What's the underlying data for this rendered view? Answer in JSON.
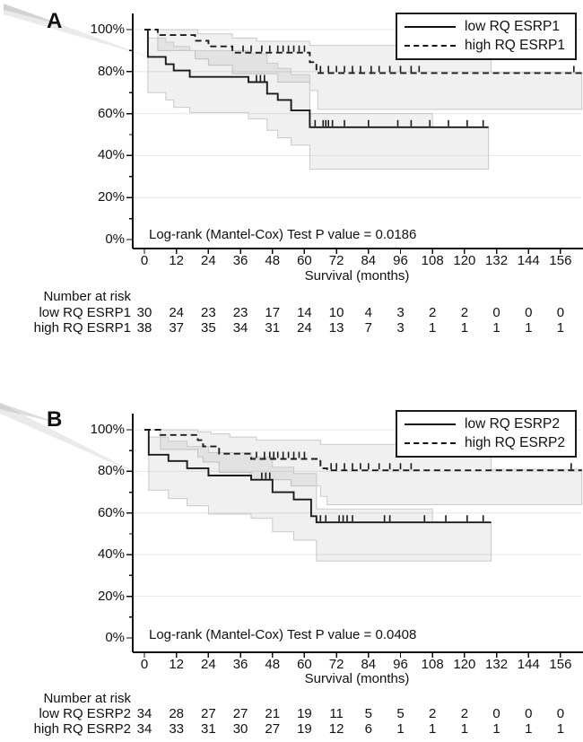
{
  "colors": {
    "curve": "#1a1a1a",
    "band_fill": "rgba(128,128,128,0.12)",
    "band_edge": "#c9c9c9",
    "grid_line": "#ebebeb",
    "axis": "#111111",
    "wedge": "#d9d9d9"
  },
  "chart_data": [
    {
      "type": "line",
      "subtype": "kaplan-meier-step",
      "panel_label": "A",
      "xlabel": "Survival (months)",
      "p_value_label": "Log-rank (Mantel-Cox) Test P value = 0.0186",
      "x_ticks": [
        0,
        12,
        24,
        36,
        48,
        60,
        72,
        84,
        96,
        108,
        120,
        132,
        144,
        156
      ],
      "y_ticks": [
        0,
        20,
        40,
        60,
        80,
        100
      ],
      "y_tick_suffix": "%",
      "xlim": [
        0,
        164
      ],
      "ylim": [
        0,
        100
      ],
      "grid": "horizontal",
      "legend_position": "top-right",
      "series": [
        {
          "name": "low RQ ESRP1",
          "line": "solid",
          "steps": [
            [
              0,
              100
            ],
            [
              1.3,
              87
            ],
            [
              8,
              83.5
            ],
            [
              11,
              80.5
            ],
            [
              17,
              77.5
            ],
            [
              39,
              75
            ],
            [
              46,
              69.5
            ],
            [
              50,
              66.5
            ],
            [
              55,
              61.5
            ],
            [
              62,
              53.5
            ],
            [
              129,
              53.5
            ]
          ],
          "censor_ticks": [
            [
              42,
              75
            ],
            [
              43.5,
              75
            ],
            [
              45,
              75
            ],
            [
              64,
              53.5
            ],
            [
              67,
              53.5
            ],
            [
              68,
              53.5
            ],
            [
              69,
              53.5
            ],
            [
              70.5,
              53.5
            ],
            [
              75,
              53.5
            ],
            [
              84,
              53.5
            ],
            [
              95,
              53.5
            ],
            [
              100,
              53.5
            ],
            [
              107,
              53.5
            ],
            [
              114,
              53.5
            ],
            [
              121,
              53.5
            ],
            [
              127,
              53.5
            ]
          ],
          "ci_upper": [
            [
              0,
              100
            ],
            [
              1.3,
              96
            ],
            [
              8,
              94
            ],
            [
              11,
              92
            ],
            [
              17,
              90
            ],
            [
              39,
              88.5
            ],
            [
              46,
              84
            ],
            [
              50,
              81.5
            ],
            [
              55,
              78.5
            ],
            [
              62,
              60
            ],
            [
              108,
              60
            ],
            [
              108,
              53.6
            ],
            [
              129,
              53.6
            ]
          ],
          "ci_lower": [
            [
              0,
              100
            ],
            [
              1.3,
              70
            ],
            [
              8,
              66.5
            ],
            [
              11,
              63
            ],
            [
              17,
              60.5
            ],
            [
              39,
              57.5
            ],
            [
              46,
              52
            ],
            [
              50,
              48.5
            ],
            [
              55,
              45
            ],
            [
              62,
              33.5
            ],
            [
              129,
              33.5
            ]
          ]
        },
        {
          "name": "high RQ ESRP1",
          "line": "dashed",
          "steps": [
            [
              0,
              100
            ],
            [
              5,
              97.4
            ],
            [
              19,
              94.7
            ],
            [
              24,
              92
            ],
            [
              33,
              89
            ],
            [
              62,
              84.5
            ],
            [
              64.5,
              79.3
            ],
            [
              164,
              79.3
            ]
          ],
          "censor_ticks": [
            [
              37,
              89
            ],
            [
              40,
              89
            ],
            [
              44,
              89
            ],
            [
              47,
              89
            ],
            [
              50,
              89
            ],
            [
              52,
              89
            ],
            [
              54,
              89
            ],
            [
              56,
              89
            ],
            [
              58,
              89
            ],
            [
              60,
              89
            ],
            [
              66,
              79.3
            ],
            [
              69,
              79.3
            ],
            [
              72,
              79.3
            ],
            [
              75,
              79.3
            ],
            [
              78,
              79.3
            ],
            [
              81,
              79.3
            ],
            [
              85,
              79.3
            ],
            [
              88,
              79.3
            ],
            [
              92,
              79.3
            ],
            [
              96,
              79.3
            ],
            [
              100,
              79.3
            ],
            [
              103,
              79.3
            ],
            [
              161,
              79.3
            ]
          ],
          "ci_upper": [
            [
              0,
              100
            ],
            [
              20,
              98
            ],
            [
              33,
              96
            ],
            [
              42,
              94.5
            ],
            [
              62,
              92.5
            ],
            [
              130,
              92.5
            ],
            [
              130,
              79.5
            ],
            [
              164,
              79.5
            ]
          ],
          "ci_lower": [
            [
              0,
              100
            ],
            [
              5,
              90
            ],
            [
              19,
              86
            ],
            [
              24,
              83
            ],
            [
              33,
              79
            ],
            [
              50,
              75
            ],
            [
              62,
              71
            ],
            [
              65,
              62
            ],
            [
              164,
              62
            ]
          ]
        }
      ],
      "risk_table": {
        "header": "Number at risk",
        "rows": [
          {
            "label": "low RQ ESRP1",
            "counts": [
              30,
              24,
              23,
              23,
              17,
              14,
              10,
              4,
              3,
              2,
              2,
              0,
              0,
              0
            ]
          },
          {
            "label": "high RQ ESRP1",
            "counts": [
              38,
              37,
              35,
              34,
              31,
              24,
              13,
              7,
              3,
              1,
              1,
              1,
              1,
              1
            ]
          }
        ]
      }
    },
    {
      "type": "line",
      "subtype": "kaplan-meier-step",
      "panel_label": "B",
      "xlabel": "Survival (months)",
      "p_value_label": "Log-rank (Mantel-Cox) Test P value = 0.0408",
      "x_ticks": [
        0,
        12,
        24,
        36,
        48,
        60,
        72,
        84,
        96,
        108,
        120,
        132,
        144,
        156
      ],
      "y_ticks": [
        0,
        20,
        40,
        60,
        80,
        100
      ],
      "y_tick_suffix": "%",
      "xlim": [
        0,
        164
      ],
      "ylim": [
        0,
        100
      ],
      "grid": "horizontal",
      "legend_position": "top-right",
      "series": [
        {
          "name": "low RQ ESRP2",
          "line": "solid",
          "steps": [
            [
              0,
              100
            ],
            [
              1.6,
              88
            ],
            [
              9,
              85
            ],
            [
              16,
              81.5
            ],
            [
              24,
              78
            ],
            [
              40,
              76
            ],
            [
              48,
              70
            ],
            [
              56,
              66.5
            ],
            [
              62.5,
              58.5
            ],
            [
              64.5,
              55.5
            ],
            [
              130,
              55.5
            ]
          ],
          "censor_ticks": [
            [
              44,
              76
            ],
            [
              45.5,
              76
            ],
            [
              47,
              76
            ],
            [
              66,
              55.5
            ],
            [
              68,
              55.5
            ],
            [
              73,
              55.5
            ],
            [
              74.5,
              55.5
            ],
            [
              76,
              55.5
            ],
            [
              78,
              55.5
            ],
            [
              90,
              55.5
            ],
            [
              92,
              55.5
            ],
            [
              105,
              55.5
            ],
            [
              113,
              55.5
            ],
            [
              121,
              55.5
            ],
            [
              127,
              55.5
            ]
          ],
          "ci_upper": [
            [
              0,
              100
            ],
            [
              1.6,
              96.5
            ],
            [
              9,
              94.5
            ],
            [
              16,
              92
            ],
            [
              24,
              89
            ],
            [
              40,
              87
            ],
            [
              48,
              82
            ],
            [
              56,
              79
            ],
            [
              64.5,
              62
            ],
            [
              108,
              62
            ],
            [
              108,
              55.6
            ],
            [
              130,
              55.6
            ]
          ],
          "ci_lower": [
            [
              0,
              100
            ],
            [
              1.6,
              71
            ],
            [
              9,
              67
            ],
            [
              16,
              63.5
            ],
            [
              24,
              59.5
            ],
            [
              40,
              57.5
            ],
            [
              48,
              51
            ],
            [
              56,
              47
            ],
            [
              64.5,
              37
            ],
            [
              130,
              37
            ]
          ]
        },
        {
          "name": "high RQ ESRP2",
          "line": "dashed",
          "steps": [
            [
              0,
              100
            ],
            [
              6,
              97.5
            ],
            [
              20,
              95
            ],
            [
              22,
              92
            ],
            [
              28,
              88.5
            ],
            [
              40,
              86
            ],
            [
              66,
              81.5
            ],
            [
              68.5,
              80.5
            ],
            [
              164,
              80.5
            ]
          ],
          "censor_ticks": [
            [
              42,
              86
            ],
            [
              45,
              86
            ],
            [
              47,
              86
            ],
            [
              48.5,
              86
            ],
            [
              50,
              86
            ],
            [
              52,
              86
            ],
            [
              54,
              86
            ],
            [
              56,
              86
            ],
            [
              58,
              86
            ],
            [
              60,
              86
            ],
            [
              70,
              80.5
            ],
            [
              72,
              80.5
            ],
            [
              75,
              80.5
            ],
            [
              78,
              80.5
            ],
            [
              81,
              80.5
            ],
            [
              84,
              80.5
            ],
            [
              88,
              80.5
            ],
            [
              92,
              80.5
            ],
            [
              96,
              80.5
            ],
            [
              100,
              80.5
            ],
            [
              160,
              80.5
            ]
          ],
          "ci_upper": [
            [
              0,
              100
            ],
            [
              20,
              99
            ],
            [
              25,
              98
            ],
            [
              32,
              96.5
            ],
            [
              42,
              95
            ],
            [
              66,
              93
            ],
            [
              130,
              93
            ],
            [
              130,
              81
            ],
            [
              164,
              81
            ]
          ],
          "ci_lower": [
            [
              0,
              100
            ],
            [
              6,
              90.5
            ],
            [
              20,
              87
            ],
            [
              22,
              84.5
            ],
            [
              28,
              79.5
            ],
            [
              40,
              76
            ],
            [
              55,
              73
            ],
            [
              66,
              68
            ],
            [
              68.5,
              64
            ],
            [
              164,
              64
            ]
          ]
        }
      ],
      "risk_table": {
        "header": "Number at risk",
        "rows": [
          {
            "label": "low RQ ESRP2",
            "counts": [
              34,
              28,
              27,
              27,
              21,
              19,
              11,
              5,
              5,
              2,
              2,
              0,
              0,
              0
            ]
          },
          {
            "label": "high RQ ESRP2",
            "counts": [
              34,
              33,
              31,
              30,
              27,
              19,
              12,
              6,
              1,
              1,
              1,
              1,
              1,
              1
            ]
          }
        ]
      }
    }
  ]
}
